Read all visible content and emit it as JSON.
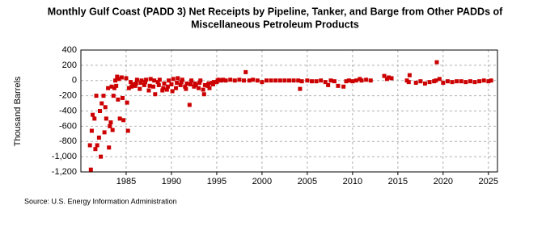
{
  "chart_data": {
    "type": "scatter",
    "title": [
      "Monthly Gulf Coast (PADD 3) Net Receipts by Pipeline, Tanker, and Barge from Other PADDs of",
      "Miscellaneous Petroleum Products"
    ],
    "ylabel": "Thousand Barrels",
    "source": "Source: U.S. Energy Information Administration",
    "color": "#cc0000",
    "grid": true,
    "xlim": [
      1980,
      2026
    ],
    "xticks": [
      1985,
      1990,
      1995,
      2000,
      2005,
      2010,
      2015,
      2020,
      2025
    ],
    "ylim": [
      -1200,
      400
    ],
    "yticks": [
      400,
      200,
      0,
      -200,
      -400,
      -600,
      -800,
      {
        "value": -1000,
        "label": "-1,000"
      },
      {
        "value": -1200,
        "label": "-1,200"
      }
    ],
    "x": [
      1981.0,
      1981.1,
      1981.2,
      1981.3,
      1981.5,
      1981.6,
      1981.7,
      1981.8,
      1982.0,
      1982.1,
      1982.2,
      1982.3,
      1982.5,
      1982.6,
      1982.7,
      1982.8,
      1983.0,
      1983.1,
      1983.2,
      1983.3,
      1983.4,
      1983.5,
      1983.6,
      1983.7,
      1983.8,
      1983.9,
      1984.0,
      1984.1,
      1984.2,
      1984.3,
      1984.5,
      1984.6,
      1984.7,
      1985.0,
      1985.1,
      1985.2,
      1985.3,
      1985.5,
      1985.6,
      1985.7,
      1986.0,
      1986.1,
      1986.2,
      1986.5,
      1986.6,
      1986.7,
      1987.0,
      1987.1,
      1987.2,
      1987.5,
      1987.6,
      1987.7,
      1988.0,
      1988.1,
      1988.2,
      1988.5,
      1988.6,
      1988.7,
      1989.0,
      1989.1,
      1989.2,
      1989.5,
      1989.6,
      1989.7,
      1990.0,
      1990.1,
      1990.2,
      1990.5,
      1990.6,
      1990.7,
      1991.0,
      1991.1,
      1991.2,
      1991.5,
      1991.6,
      1991.7,
      1992.0,
      1992.1,
      1992.2,
      1992.5,
      1992.6,
      1992.7,
      1993.0,
      1993.1,
      1993.2,
      1993.5,
      1993.6,
      1993.7,
      1994.0,
      1994.1,
      1994.2,
      1994.5,
      1994.6,
      1994.7,
      1995.0,
      1995.1,
      1995.2,
      1995.5,
      1995.7,
      1996.0,
      1996.5,
      1997.0,
      1997.5,
      1998.0,
      1998.2,
      1998.6,
      1999.0,
      1999.5,
      2000.0,
      2000.5,
      2001.0,
      2001.5,
      2002.0,
      2002.5,
      2003.0,
      2003.5,
      2004.0,
      2004.2,
      2004.4,
      2005.0,
      2005.5,
      2006.0,
      2006.5,
      2007.0,
      2007.3,
      2007.6,
      2008.0,
      2008.4,
      2009.0,
      2009.3,
      2009.6,
      2010.0,
      2010.4,
      2010.8,
      2011.0,
      2011.5,
      2012.0,
      2013.5,
      2013.8,
      2014.0,
      2014.3,
      2016.0,
      2016.2,
      2016.3,
      2017.0,
      2017.5,
      2018.0,
      2018.5,
      2019.0,
      2019.2,
      2019.3,
      2019.6,
      2020.0,
      2020.5,
      2021.0,
      2021.5,
      2022.0,
      2022.5,
      2023.0,
      2023.5,
      2024.0,
      2024.5,
      2025.0,
      2025.3
    ],
    "values": [
      -850,
      -1170,
      -660,
      -450,
      -500,
      -900,
      -200,
      -850,
      -750,
      -400,
      -1000,
      -300,
      -200,
      -680,
      -350,
      -500,
      -100,
      -880,
      -600,
      -550,
      -80,
      -650,
      -200,
      -100,
      0,
      -70,
      50,
      -250,
      20,
      -500,
      40,
      -230,
      -520,
      30,
      -290,
      -660,
      -100,
      -20,
      -80,
      -50,
      -70,
      -40,
      10,
      -110,
      -30,
      0,
      -60,
      -20,
      10,
      -130,
      -70,
      20,
      -80,
      0,
      -180,
      -20,
      -60,
      10,
      -130,
      -100,
      -40,
      -120,
      -80,
      0,
      -50,
      -140,
      20,
      -100,
      -30,
      30,
      -60,
      -20,
      10,
      -80,
      -110,
      -40,
      -320,
      -50,
      0,
      -80,
      -40,
      -60,
      -100,
      -30,
      0,
      -120,
      -180,
      -60,
      -70,
      -40,
      -100,
      -30,
      -50,
      -20,
      -20,
      0,
      10,
      0,
      10,
      0,
      10,
      0,
      10,
      0,
      110,
      0,
      10,
      0,
      -20,
      0,
      0,
      0,
      0,
      0,
      0,
      0,
      0,
      -110,
      -10,
      0,
      -10,
      -10,
      0,
      -20,
      -60,
      0,
      -10,
      -70,
      -80,
      -10,
      0,
      -10,
      0,
      20,
      0,
      10,
      0,
      60,
      20,
      40,
      30,
      0,
      -20,
      70,
      -30,
      -10,
      -40,
      -20,
      -10,
      0,
      240,
      20,
      -30,
      -10,
      -20,
      -10,
      -10,
      -20,
      -10,
      -20,
      -10,
      0,
      -10,
      0
    ]
  }
}
